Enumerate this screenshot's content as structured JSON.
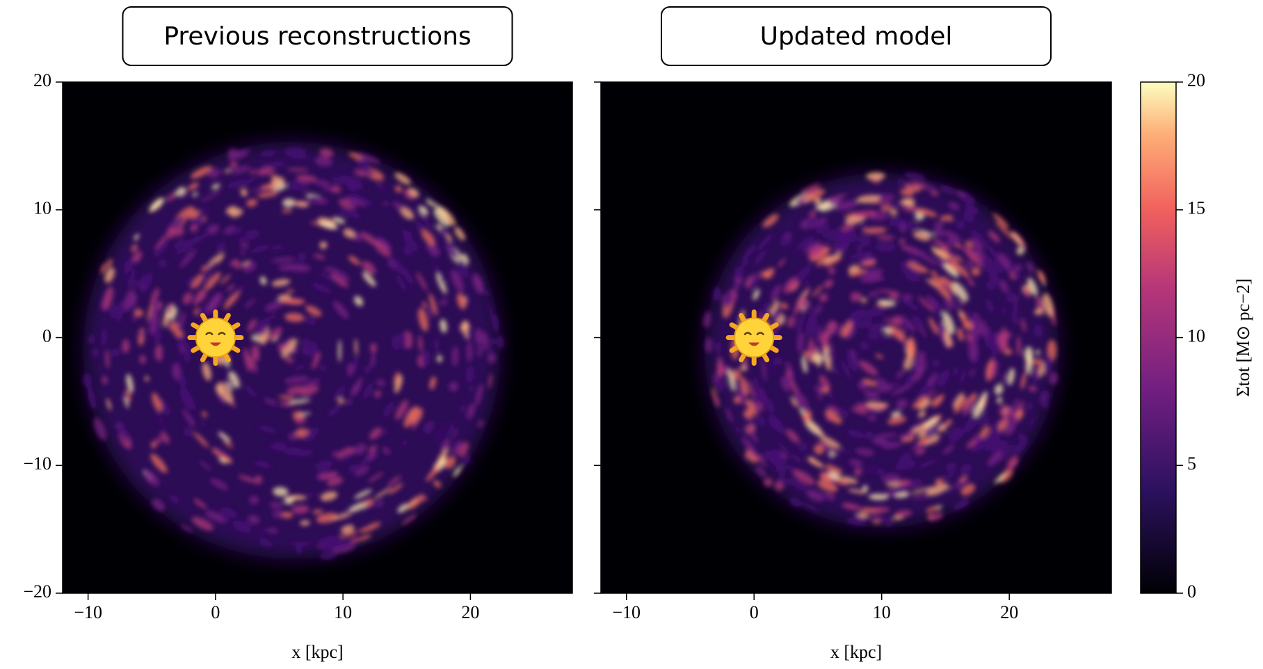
{
  "chart_data": [
    {
      "type": "heatmap",
      "title": "Previous reconstructions",
      "xlabel": "x [kpc]",
      "xlim": [
        -12,
        28
      ],
      "ylim": [
        -20,
        20
      ],
      "xticks": [
        {
          "value": -10,
          "label": "−10"
        },
        0,
        10,
        20
      ],
      "yticks": [
        {
          "value": -20,
          "label": "−20"
        },
        {
          "value": -10,
          "label": "−10"
        },
        0,
        10,
        20
      ],
      "show_ytick_labels": true
    },
    {
      "type": "heatmap",
      "title": "Updated model",
      "xlabel": "x [kpc]",
      "xlim": [
        -12,
        28
      ],
      "ylim": [
        -20,
        20
      ],
      "xticks": [
        {
          "value": -10,
          "label": "−10"
        },
        0,
        10,
        20
      ],
      "yticks": [
        -20,
        -10,
        0,
        10,
        20
      ],
      "show_ytick_labels": false,
      "colorbar": {
        "label": "Σtot [M⊙ pc−2]",
        "lim": [
          0,
          20
        ],
        "ticks": [
          0,
          5,
          10,
          15,
          20
        ]
      }
    }
  ]
}
